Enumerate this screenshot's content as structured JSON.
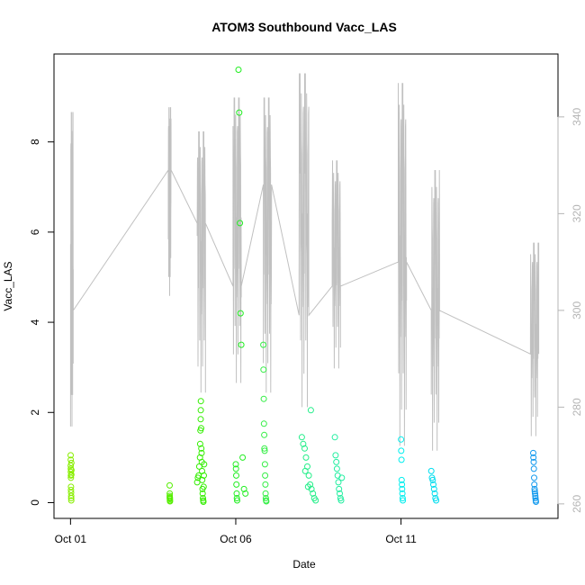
{
  "chart_data": {
    "type": "scatter",
    "title": "ATOM3 Southbound Vacc_LAS",
    "xlabel": "Date",
    "ylabel": "Vacc_LAS",
    "xlim": [
      "2016-09-30T12:00",
      "2016-10-15T18:00"
    ],
    "ylim": [
      -0.35,
      9.95
    ],
    "y2lim": [
      257,
      353
    ],
    "x_ticks": [
      {
        "label": "Oct 01",
        "date": "2016-10-01T00:00"
      },
      {
        "label": "Oct 06",
        "date": "2016-10-06T00:00"
      },
      {
        "label": "Oct 11",
        "date": "2016-10-11T00:00"
      }
    ],
    "y_ticks": [
      0,
      2,
      4,
      6,
      8
    ],
    "y2_ticks": [
      260,
      280,
      300,
      320,
      340
    ],
    "colors": {
      "axis": "#000000",
      "box": "#000000",
      "secondary_axis": "#b4b4b4",
      "line": "#c0c0c0"
    },
    "scatter_series": [
      {
        "color": "#88ee00",
        "points": [
          [
            "2016-10-01T00:05",
            1.05
          ],
          [
            "2016-10-01T00:08",
            0.95
          ],
          [
            "2016-10-01T00:10",
            0.82
          ],
          [
            "2016-10-01T00:12",
            0.75
          ],
          [
            "2016-10-01T00:14",
            0.68
          ],
          [
            "2016-10-01T00:16",
            0.6
          ],
          [
            "2016-10-01T00:18",
            0.55
          ],
          [
            "2016-10-01T00:20",
            0.35
          ],
          [
            "2016-10-01T00:22",
            0.28
          ],
          [
            "2016-10-01T00:25",
            0.22
          ],
          [
            "2016-10-01T00:28",
            0.15
          ],
          [
            "2016-10-01T00:30",
            0.1
          ],
          [
            "2016-10-01T00:32",
            0.05
          ],
          [
            "2016-10-01T00:35",
            0.88
          ],
          [
            "2016-10-01T00:38",
            0.62
          ],
          [
            "2016-10-01T00:40",
            0.72
          ]
        ]
      },
      {
        "color": "#55ee00",
        "points": [
          [
            "2016-10-04T00:00",
            0.38
          ],
          [
            "2016-10-04T00:02",
            0.2
          ],
          [
            "2016-10-04T00:04",
            0.15
          ],
          [
            "2016-10-04T00:06",
            0.12
          ],
          [
            "2016-10-04T00:08",
            0.1
          ],
          [
            "2016-10-04T00:10",
            0.08
          ],
          [
            "2016-10-04T00:12",
            0.05
          ],
          [
            "2016-10-04T00:14",
            0.03
          ]
        ]
      },
      {
        "color": "#33ee00",
        "points": [
          [
            "2016-10-04T20:00",
            0.45
          ],
          [
            "2016-10-04T20:30",
            0.55
          ],
          [
            "2016-10-04T21:00",
            0.6
          ],
          [
            "2016-10-04T21:30",
            0.8
          ],
          [
            "2016-10-04T22:00",
            1.0
          ],
          [
            "2016-10-04T22:10",
            1.3
          ],
          [
            "2016-10-04T22:20",
            1.6
          ],
          [
            "2016-10-04T22:30",
            1.85
          ],
          [
            "2016-10-04T22:35",
            2.05
          ],
          [
            "2016-10-04T22:40",
            2.25
          ],
          [
            "2016-10-04T22:50",
            1.65
          ],
          [
            "2016-10-04T23:00",
            1.2
          ],
          [
            "2016-10-04T23:10",
            1.1
          ],
          [
            "2016-10-04T23:20",
            0.9
          ],
          [
            "2016-10-04T23:30",
            0.7
          ],
          [
            "2016-10-04T23:40",
            0.5
          ],
          [
            "2016-10-04T23:50",
            0.3
          ],
          [
            "2016-10-05T00:00",
            0.2
          ],
          [
            "2016-10-05T00:10",
            0.1
          ],
          [
            "2016-10-05T00:20",
            0.05
          ],
          [
            "2016-10-05T00:30",
            0.02
          ],
          [
            "2016-10-05T00:40",
            0.35
          ],
          [
            "2016-10-05T00:50",
            0.6
          ],
          [
            "2016-10-05T01:00",
            0.85
          ]
        ]
      },
      {
        "color": "#22ee22",
        "points": [
          [
            "2016-10-06T00:00",
            0.85
          ],
          [
            "2016-10-06T00:10",
            0.75
          ],
          [
            "2016-10-06T00:20",
            0.6
          ],
          [
            "2016-10-06T00:30",
            0.4
          ],
          [
            "2016-10-06T00:40",
            0.2
          ],
          [
            "2016-10-06T00:50",
            0.1
          ],
          [
            "2016-10-06T01:00",
            0.05
          ],
          [
            "2016-10-06T02:00",
            9.6
          ],
          [
            "2016-10-06T02:30",
            8.65
          ],
          [
            "2016-10-06T03:00",
            6.2
          ],
          [
            "2016-10-06T03:30",
            4.2
          ],
          [
            "2016-10-06T04:00",
            3.5
          ],
          [
            "2016-10-06T05:00",
            1.0
          ],
          [
            "2016-10-06T06:00",
            0.3
          ],
          [
            "2016-10-06T07:00",
            0.2
          ]
        ]
      },
      {
        "color": "#33ee44",
        "points": [
          [
            "2016-10-06T20:00",
            3.5
          ],
          [
            "2016-10-06T20:10",
            2.95
          ],
          [
            "2016-10-06T20:20",
            2.3
          ],
          [
            "2016-10-06T20:30",
            1.75
          ],
          [
            "2016-10-06T20:40",
            1.5
          ],
          [
            "2016-10-06T20:50",
            1.2
          ],
          [
            "2016-10-06T21:00",
            1.15
          ],
          [
            "2016-10-06T21:10",
            0.85
          ],
          [
            "2016-10-06T21:20",
            0.6
          ],
          [
            "2016-10-06T21:30",
            0.4
          ],
          [
            "2016-10-06T21:40",
            0.2
          ],
          [
            "2016-10-06T21:50",
            0.1
          ],
          [
            "2016-10-06T22:00",
            0.05
          ],
          [
            "2016-10-06T22:10",
            0.03
          ]
        ]
      },
      {
        "color": "#22ee88",
        "points": [
          [
            "2016-10-08T00:00",
            1.45
          ],
          [
            "2016-10-08T01:00",
            1.3
          ],
          [
            "2016-10-08T02:00",
            1.2
          ],
          [
            "2016-10-08T03:00",
            1.0
          ],
          [
            "2016-10-08T04:00",
            0.8
          ],
          [
            "2016-10-08T05:00",
            0.6
          ],
          [
            "2016-10-08T06:00",
            0.4
          ],
          [
            "2016-10-08T07:00",
            0.3
          ],
          [
            "2016-10-08T08:00",
            0.2
          ],
          [
            "2016-10-08T09:00",
            0.1
          ],
          [
            "2016-10-08T10:00",
            0.05
          ],
          [
            "2016-10-08T06:30",
            2.05
          ],
          [
            "2016-10-08T04:30",
            0.35
          ],
          [
            "2016-10-08T02:30",
            0.7
          ]
        ]
      },
      {
        "color": "#22eea0",
        "points": [
          [
            "2016-10-09T00:00",
            1.45
          ],
          [
            "2016-10-09T00:30",
            1.05
          ],
          [
            "2016-10-09T01:00",
            0.9
          ],
          [
            "2016-10-09T01:30",
            0.75
          ],
          [
            "2016-10-09T02:00",
            0.6
          ],
          [
            "2016-10-09T02:30",
            0.45
          ],
          [
            "2016-10-09T03:00",
            0.3
          ],
          [
            "2016-10-09T03:30",
            0.2
          ],
          [
            "2016-10-09T04:00",
            0.1
          ],
          [
            "2016-10-09T04:30",
            0.05
          ],
          [
            "2016-10-09T05:00",
            0.55
          ]
        ]
      },
      {
        "color": "#00eeee",
        "points": [
          [
            "2016-10-11T00:00",
            1.4
          ],
          [
            "2016-10-11T00:10",
            1.15
          ],
          [
            "2016-10-11T00:20",
            0.95
          ],
          [
            "2016-10-11T00:30",
            0.5
          ],
          [
            "2016-10-11T00:40",
            0.4
          ],
          [
            "2016-10-11T00:50",
            0.3
          ],
          [
            "2016-10-11T01:00",
            0.2
          ],
          [
            "2016-10-11T01:10",
            0.1
          ],
          [
            "2016-10-11T01:20",
            0.05
          ]
        ]
      },
      {
        "color": "#00ddee",
        "points": [
          [
            "2016-10-11T22:00",
            0.7
          ],
          [
            "2016-10-11T22:30",
            0.55
          ],
          [
            "2016-10-11T23:00",
            0.5
          ],
          [
            "2016-10-11T23:30",
            0.4
          ],
          [
            "2016-10-12T00:00",
            0.3
          ],
          [
            "2016-10-12T00:30",
            0.2
          ],
          [
            "2016-10-12T01:00",
            0.1
          ],
          [
            "2016-10-12T01:30",
            0.05
          ]
        ]
      },
      {
        "color": "#1199ee",
        "points": [
          [
            "2016-10-15T00:00",
            1.1
          ],
          [
            "2016-10-15T00:10",
            1.0
          ],
          [
            "2016-10-15T00:20",
            0.9
          ],
          [
            "2016-10-15T00:30",
            0.75
          ],
          [
            "2016-10-15T00:40",
            0.55
          ],
          [
            "2016-10-15T00:50",
            0.4
          ],
          [
            "2016-10-15T01:00",
            0.3
          ],
          [
            "2016-10-15T01:10",
            0.25
          ],
          [
            "2016-10-15T01:20",
            0.2
          ],
          [
            "2016-10-15T01:30",
            0.15
          ],
          [
            "2016-10-15T01:40",
            0.1
          ],
          [
            "2016-10-15T01:50",
            0.05
          ],
          [
            "2016-10-15T02:00",
            0.02
          ]
        ]
      }
    ],
    "secondary_line": {
      "axis": "right",
      "segments": [
        {
          "start": "2016-10-01T00:00",
          "end": "2016-10-01T02:00",
          "min": 276,
          "max": 341,
          "base": 300
        },
        {
          "start": "2016-10-03T23:00",
          "end": "2016-10-04T01:00",
          "min": 303,
          "max": 342,
          "base": 329
        },
        {
          "start": "2016-10-04T20:00",
          "end": "2016-10-05T02:00",
          "min": 283,
          "max": 337,
          "base": 318
        },
        {
          "start": "2016-10-05T22:00",
          "end": "2016-10-06T04:00",
          "min": 285,
          "max": 344,
          "base": 305
        },
        {
          "start": "2016-10-06T20:00",
          "end": "2016-10-07T02:00",
          "min": 283,
          "max": 344,
          "base": 326
        },
        {
          "start": "2016-10-07T22:00",
          "end": "2016-10-08T05:00",
          "min": 280,
          "max": 349,
          "base": 299
        },
        {
          "start": "2016-10-08T22:00",
          "end": "2016-10-09T04:00",
          "min": 288,
          "max": 331,
          "base": 305
        },
        {
          "start": "2016-10-10T22:00",
          "end": "2016-10-11T04:00",
          "min": 272,
          "max": 347,
          "base": 310
        },
        {
          "start": "2016-10-11T22:00",
          "end": "2016-10-12T04:00",
          "min": 271,
          "max": 329,
          "base": 300
        },
        {
          "start": "2016-10-14T22:00",
          "end": "2016-10-15T04:00",
          "min": 274,
          "max": 314,
          "base": 291
        }
      ]
    }
  }
}
